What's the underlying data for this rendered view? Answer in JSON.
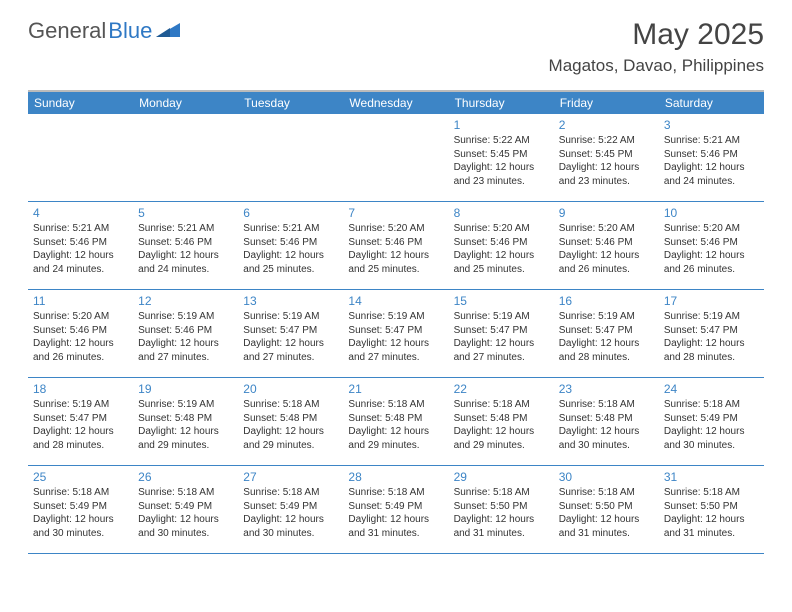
{
  "logo": {
    "text1": "General",
    "text2": "Blue"
  },
  "title": "May 2025",
  "location": "Magatos, Davao, Philippines",
  "colors": {
    "header_bg": "#3d85c6",
    "header_text": "#ffffff",
    "day_num": "#3d85c6",
    "body_text": "#333333",
    "rule": "#3d85c6"
  },
  "weekdays": [
    "Sunday",
    "Monday",
    "Tuesday",
    "Wednesday",
    "Thursday",
    "Friday",
    "Saturday"
  ],
  "weeks": [
    [
      null,
      null,
      null,
      null,
      {
        "n": "1",
        "sunrise": "Sunrise: 5:22 AM",
        "sunset": "Sunset: 5:45 PM",
        "daylight": "Daylight: 12 hours and 23 minutes."
      },
      {
        "n": "2",
        "sunrise": "Sunrise: 5:22 AM",
        "sunset": "Sunset: 5:45 PM",
        "daylight": "Daylight: 12 hours and 23 minutes."
      },
      {
        "n": "3",
        "sunrise": "Sunrise: 5:21 AM",
        "sunset": "Sunset: 5:46 PM",
        "daylight": "Daylight: 12 hours and 24 minutes."
      }
    ],
    [
      {
        "n": "4",
        "sunrise": "Sunrise: 5:21 AM",
        "sunset": "Sunset: 5:46 PM",
        "daylight": "Daylight: 12 hours and 24 minutes."
      },
      {
        "n": "5",
        "sunrise": "Sunrise: 5:21 AM",
        "sunset": "Sunset: 5:46 PM",
        "daylight": "Daylight: 12 hours and 24 minutes."
      },
      {
        "n": "6",
        "sunrise": "Sunrise: 5:21 AM",
        "sunset": "Sunset: 5:46 PM",
        "daylight": "Daylight: 12 hours and 25 minutes."
      },
      {
        "n": "7",
        "sunrise": "Sunrise: 5:20 AM",
        "sunset": "Sunset: 5:46 PM",
        "daylight": "Daylight: 12 hours and 25 minutes."
      },
      {
        "n": "8",
        "sunrise": "Sunrise: 5:20 AM",
        "sunset": "Sunset: 5:46 PM",
        "daylight": "Daylight: 12 hours and 25 minutes."
      },
      {
        "n": "9",
        "sunrise": "Sunrise: 5:20 AM",
        "sunset": "Sunset: 5:46 PM",
        "daylight": "Daylight: 12 hours and 26 minutes."
      },
      {
        "n": "10",
        "sunrise": "Sunrise: 5:20 AM",
        "sunset": "Sunset: 5:46 PM",
        "daylight": "Daylight: 12 hours and 26 minutes."
      }
    ],
    [
      {
        "n": "11",
        "sunrise": "Sunrise: 5:20 AM",
        "sunset": "Sunset: 5:46 PM",
        "daylight": "Daylight: 12 hours and 26 minutes."
      },
      {
        "n": "12",
        "sunrise": "Sunrise: 5:19 AM",
        "sunset": "Sunset: 5:46 PM",
        "daylight": "Daylight: 12 hours and 27 minutes."
      },
      {
        "n": "13",
        "sunrise": "Sunrise: 5:19 AM",
        "sunset": "Sunset: 5:47 PM",
        "daylight": "Daylight: 12 hours and 27 minutes."
      },
      {
        "n": "14",
        "sunrise": "Sunrise: 5:19 AM",
        "sunset": "Sunset: 5:47 PM",
        "daylight": "Daylight: 12 hours and 27 minutes."
      },
      {
        "n": "15",
        "sunrise": "Sunrise: 5:19 AM",
        "sunset": "Sunset: 5:47 PM",
        "daylight": "Daylight: 12 hours and 27 minutes."
      },
      {
        "n": "16",
        "sunrise": "Sunrise: 5:19 AM",
        "sunset": "Sunset: 5:47 PM",
        "daylight": "Daylight: 12 hours and 28 minutes."
      },
      {
        "n": "17",
        "sunrise": "Sunrise: 5:19 AM",
        "sunset": "Sunset: 5:47 PM",
        "daylight": "Daylight: 12 hours and 28 minutes."
      }
    ],
    [
      {
        "n": "18",
        "sunrise": "Sunrise: 5:19 AM",
        "sunset": "Sunset: 5:47 PM",
        "daylight": "Daylight: 12 hours and 28 minutes."
      },
      {
        "n": "19",
        "sunrise": "Sunrise: 5:19 AM",
        "sunset": "Sunset: 5:48 PM",
        "daylight": "Daylight: 12 hours and 29 minutes."
      },
      {
        "n": "20",
        "sunrise": "Sunrise: 5:18 AM",
        "sunset": "Sunset: 5:48 PM",
        "daylight": "Daylight: 12 hours and 29 minutes."
      },
      {
        "n": "21",
        "sunrise": "Sunrise: 5:18 AM",
        "sunset": "Sunset: 5:48 PM",
        "daylight": "Daylight: 12 hours and 29 minutes."
      },
      {
        "n": "22",
        "sunrise": "Sunrise: 5:18 AM",
        "sunset": "Sunset: 5:48 PM",
        "daylight": "Daylight: 12 hours and 29 minutes."
      },
      {
        "n": "23",
        "sunrise": "Sunrise: 5:18 AM",
        "sunset": "Sunset: 5:48 PM",
        "daylight": "Daylight: 12 hours and 30 minutes."
      },
      {
        "n": "24",
        "sunrise": "Sunrise: 5:18 AM",
        "sunset": "Sunset: 5:49 PM",
        "daylight": "Daylight: 12 hours and 30 minutes."
      }
    ],
    [
      {
        "n": "25",
        "sunrise": "Sunrise: 5:18 AM",
        "sunset": "Sunset: 5:49 PM",
        "daylight": "Daylight: 12 hours and 30 minutes."
      },
      {
        "n": "26",
        "sunrise": "Sunrise: 5:18 AM",
        "sunset": "Sunset: 5:49 PM",
        "daylight": "Daylight: 12 hours and 30 minutes."
      },
      {
        "n": "27",
        "sunrise": "Sunrise: 5:18 AM",
        "sunset": "Sunset: 5:49 PM",
        "daylight": "Daylight: 12 hours and 30 minutes."
      },
      {
        "n": "28",
        "sunrise": "Sunrise: 5:18 AM",
        "sunset": "Sunset: 5:49 PM",
        "daylight": "Daylight: 12 hours and 31 minutes."
      },
      {
        "n": "29",
        "sunrise": "Sunrise: 5:18 AM",
        "sunset": "Sunset: 5:50 PM",
        "daylight": "Daylight: 12 hours and 31 minutes."
      },
      {
        "n": "30",
        "sunrise": "Sunrise: 5:18 AM",
        "sunset": "Sunset: 5:50 PM",
        "daylight": "Daylight: 12 hours and 31 minutes."
      },
      {
        "n": "31",
        "sunrise": "Sunrise: 5:18 AM",
        "sunset": "Sunset: 5:50 PM",
        "daylight": "Daylight: 12 hours and 31 minutes."
      }
    ]
  ]
}
